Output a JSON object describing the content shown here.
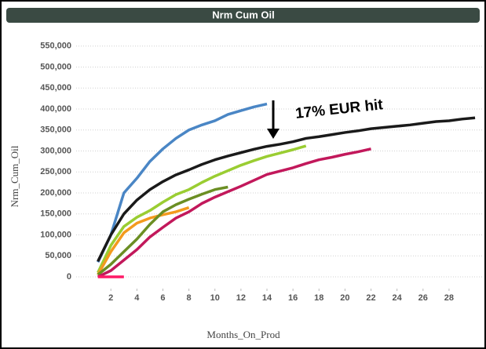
{
  "chart_data": {
    "type": "line",
    "title": "Nrm Cum Oil",
    "x_label": "Months_On_Prod",
    "y_label": "Nrm_Cum_Oil",
    "annotation": "17% EUR hit",
    "xlim": [
      -0.67,
      30.6
    ],
    "ylim": [
      -28000,
      570000
    ],
    "xticks": [
      2,
      4,
      6,
      8,
      10,
      12,
      14,
      16,
      18,
      20,
      22,
      24,
      26,
      28
    ],
    "yticks": [
      0,
      {
        "value": 50000,
        "label": "50,000"
      },
      {
        "value": 100000,
        "label": "100,000"
      },
      {
        "value": 150000,
        "label": "150,000"
      },
      {
        "value": 200000,
        "label": "200,000"
      },
      {
        "value": 250000,
        "label": "250,000"
      },
      {
        "value": 300000,
        "label": "300,000"
      },
      {
        "value": 350000,
        "label": "350,000"
      },
      {
        "value": 400000,
        "label": "400,000"
      },
      {
        "value": 450000,
        "label": "450,000"
      },
      {
        "value": 500000,
        "label": "500,000"
      },
      {
        "value": 550000,
        "label": "550,000"
      }
    ],
    "grid": true,
    "series": [
      {
        "color": "#4a86c5",
        "x": [
          1,
          2,
          3,
          4,
          5,
          6,
          7,
          8,
          9,
          10,
          11,
          12,
          13,
          14
        ],
        "values": [
          35000,
          100000,
          200000,
          235000,
          275000,
          305000,
          330000,
          350000,
          362000,
          372000,
          387000,
          396000,
          405000,
          412000
        ]
      },
      {
        "color": "#1a1a1a",
        "x": [
          1,
          2,
          3,
          4,
          5,
          6,
          7,
          8,
          9,
          10,
          11,
          12,
          13,
          14,
          15,
          16,
          17,
          18,
          19,
          20,
          21,
          22,
          23,
          24,
          25,
          26,
          27,
          28,
          29,
          30
        ],
        "values": [
          37000,
          100000,
          150000,
          183000,
          208000,
          227000,
          243000,
          255000,
          268000,
          279000,
          288000,
          296000,
          304000,
          311000,
          316000,
          322000,
          330000,
          334000,
          339000,
          344000,
          348000,
          353000,
          356000,
          359000,
          362000,
          366000,
          370000,
          372000,
          376000,
          379000
        ]
      },
      {
        "color": "#9acd32",
        "x": [
          1,
          2,
          3,
          4,
          5,
          6,
          7,
          8,
          9,
          10,
          11,
          12,
          13,
          14,
          15,
          16,
          17
        ],
        "values": [
          10000,
          75000,
          120000,
          142000,
          158000,
          178000,
          196000,
          208000,
          225000,
          240000,
          253000,
          266000,
          277000,
          287000,
          295000,
          303000,
          312000
        ]
      },
      {
        "color": "#f39a1e",
        "x": [
          1,
          2,
          3,
          4,
          5,
          6,
          7,
          8
        ],
        "values": [
          5000,
          60000,
          105000,
          128000,
          140000,
          148000,
          155000,
          165000
        ]
      },
      {
        "color": "#6b8e23",
        "x": [
          1,
          2,
          3,
          4,
          5,
          6,
          7,
          8,
          9,
          10,
          11
        ],
        "values": [
          5000,
          30000,
          60000,
          90000,
          125000,
          155000,
          172000,
          185000,
          197000,
          208000,
          214000
        ]
      },
      {
        "color": "#c2185b",
        "x": [
          1,
          2,
          3,
          4,
          5,
          6,
          7,
          8,
          9,
          10,
          11,
          12,
          13,
          14,
          15,
          16,
          17,
          18,
          19,
          20,
          21,
          22
        ],
        "values": [
          0,
          15000,
          40000,
          65000,
          95000,
          118000,
          140000,
          155000,
          175000,
          190000,
          203000,
          216000,
          230000,
          244000,
          252000,
          260000,
          270000,
          279000,
          285000,
          292000,
          298000,
          305000
        ]
      },
      {
        "color": "#ff1a66",
        "x": [
          1,
          2,
          3
        ],
        "values": [
          0,
          0,
          0
        ]
      }
    ]
  }
}
